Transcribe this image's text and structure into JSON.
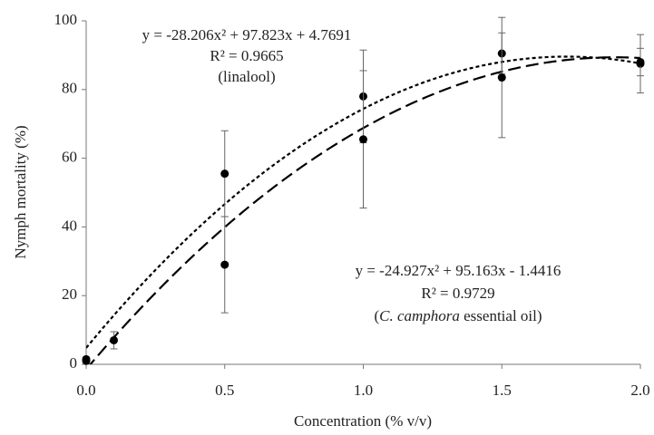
{
  "chart_data": {
    "type": "scatter",
    "x_label": "Concentration (% v/v)",
    "y_label": "Nymph mortality (%)",
    "xlim": [
      0,
      2
    ],
    "ylim": [
      0,
      100
    ],
    "xticks": [
      {
        "value": 0,
        "label": "0.0"
      },
      0.5,
      {
        "value": 1,
        "label": "1.0"
      },
      1.5,
      {
        "value": 2,
        "label": "2.0"
      }
    ],
    "yticks": [
      0,
      20,
      40,
      60,
      80,
      100
    ],
    "color": "#000000",
    "series": [
      {
        "x": [
          0,
          0.5,
          1,
          1.5,
          2
        ],
        "values": [
          1.5,
          55.5,
          78,
          90.5,
          87.5
        ],
        "errors": [
          0.5,
          12.5,
          13.5,
          6,
          8.5
        ]
      },
      {
        "x": [
          0,
          0.1,
          0.5,
          1,
          1.5,
          2
        ],
        "values": [
          1,
          7,
          29,
          65.5,
          83.5,
          88
        ],
        "errors": [
          0.5,
          2.5,
          14,
          20,
          17.5,
          4
        ]
      }
    ],
    "fits": [
      {
        "equation": "y = -28.206x² + 97.823x + 4.7691",
        "r2": "R² = 0.9665",
        "label": [
          "(linalool)"
        ],
        "coefficients": [
          -28.206,
          97.823,
          4.7691
        ],
        "dash": "4 3"
      },
      {
        "equation": "y = -24.927x² + 95.163x - 1.4416",
        "r2": "R² = 0.9729",
        "label": [
          "(",
          "C. camphora",
          " essential oil)"
        ],
        "coefficients": [
          -24.927,
          95.163,
          -1.4416
        ],
        "dash": "14 6"
      }
    ]
  }
}
